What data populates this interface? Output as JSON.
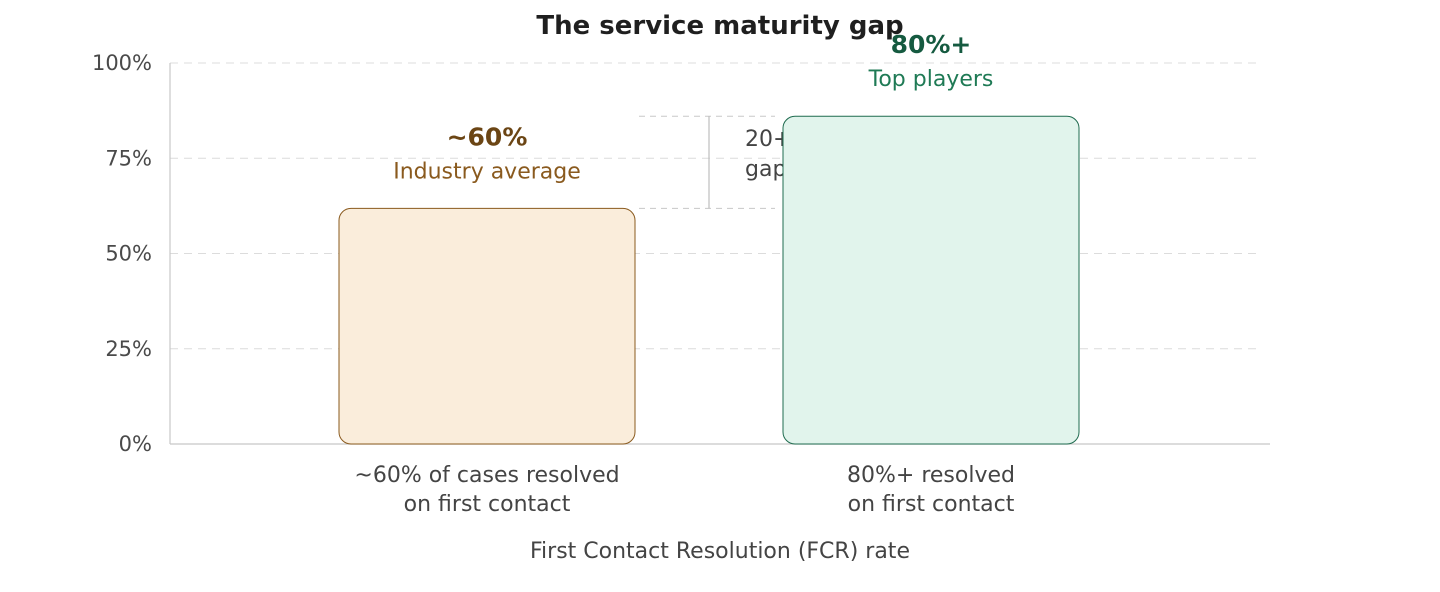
{
  "chart_data": {
    "type": "bar",
    "title": "The service maturity gap",
    "xlabel": "First Contact Resolution (FCR) rate",
    "ylabel": "",
    "ylim": [
      0,
      100
    ],
    "yticks": [
      {
        "value": 0,
        "label": "0%"
      },
      {
        "value": 25,
        "label": "25%"
      },
      {
        "value": 50,
        "label": "50%"
      },
      {
        "value": 75,
        "label": "75%"
      },
      {
        "value": 100,
        "label": "100%"
      }
    ],
    "grid": true,
    "bars": [
      {
        "value": 60,
        "value_label": "~60%",
        "label": "Industry average",
        "category_lines": [
          "~60% of cases resolved",
          "on first contact"
        ],
        "fill": "#faeddb",
        "stroke": "#8a5a1e",
        "text_color": "#6b4514",
        "label_color": "#8a5a1e"
      },
      {
        "value": 80,
        "value_label": "80%+",
        "label": "Top players",
        "category_lines": [
          "80%+ resolved",
          "on first contact"
        ],
        "fill": "#e1f4ec",
        "stroke": "#1f6b4f",
        "text_color": "#155a40",
        "label_color": "#1f7a55"
      }
    ],
    "annotation": {
      "lines": [
        "20+ pt",
        "gap"
      ]
    }
  }
}
